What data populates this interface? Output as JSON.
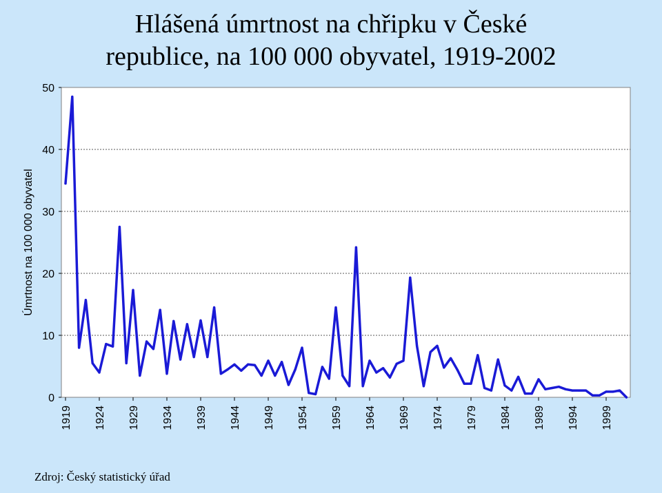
{
  "chart_data": {
    "type": "line",
    "title_line1": "Hlášená úmrtnost na chřipku v České",
    "title_line2": "republice, na 100 000 obyvatel, 1919-2002",
    "ylabel": "Úmrtnost na 100 000 obyvatel",
    "xlabel": "",
    "ylim": [
      0,
      50
    ],
    "yticks": [
      0,
      10,
      20,
      30,
      40,
      50
    ],
    "xticks": [
      1919,
      1924,
      1929,
      1934,
      1939,
      1944,
      1949,
      1954,
      1959,
      1964,
      1969,
      1974,
      1979,
      1984,
      1989,
      1994,
      1999
    ],
    "grid": true,
    "line_color": "#1a1ad6",
    "x": [
      1919,
      1920,
      1921,
      1922,
      1923,
      1924,
      1925,
      1926,
      1927,
      1928,
      1929,
      1930,
      1931,
      1932,
      1933,
      1934,
      1935,
      1936,
      1937,
      1938,
      1939,
      1940,
      1941,
      1942,
      1943,
      1944,
      1945,
      1946,
      1947,
      1948,
      1949,
      1950,
      1951,
      1952,
      1953,
      1954,
      1955,
      1956,
      1957,
      1958,
      1959,
      1960,
      1961,
      1962,
      1963,
      1964,
      1965,
      1966,
      1967,
      1968,
      1969,
      1970,
      1971,
      1972,
      1973,
      1974,
      1975,
      1976,
      1977,
      1978,
      1979,
      1980,
      1981,
      1982,
      1983,
      1984,
      1985,
      1986,
      1987,
      1988,
      1989,
      1990,
      1991,
      1992,
      1993,
      1994,
      1995,
      1996,
      1997,
      1998,
      1999,
      2000,
      2001,
      2002
    ],
    "values": [
      34.5,
      48.5,
      8,
      15.7,
      5.5,
      4,
      8.6,
      8.2,
      27.5,
      5.5,
      17.3,
      3.5,
      9,
      7.8,
      14.1,
      3.8,
      12.3,
      6.1,
      11.8,
      6.5,
      12.4,
      6.5,
      14.5,
      3.8,
      4.5,
      5.3,
      4.3,
      5.3,
      5.2,
      3.5,
      5.9,
      3.5,
      5.7,
      2,
      4.5,
      8,
      0.7,
      0.5,
      4.9,
      3,
      14.5,
      3.5,
      1.8,
      24.2,
      1.8,
      5.9,
      4,
      4.7,
      3.2,
      5.4,
      5.9,
      19.3,
      8.3,
      1.8,
      7.3,
      8.3,
      4.8,
      6.3,
      4.4,
      2.2,
      2.2,
      6.8,
      1.5,
      1.1,
      6.1,
      1.9,
      1.1,
      3.3,
      0.6,
      0.6,
      2.9,
      1.3,
      1.5,
      1.7,
      1.3,
      1.1,
      1.1,
      1.1,
      0.3,
      0.3,
      0.9,
      0.9,
      1.1,
      0
    ]
  },
  "source": "Zdroj: Český statistický úřad"
}
